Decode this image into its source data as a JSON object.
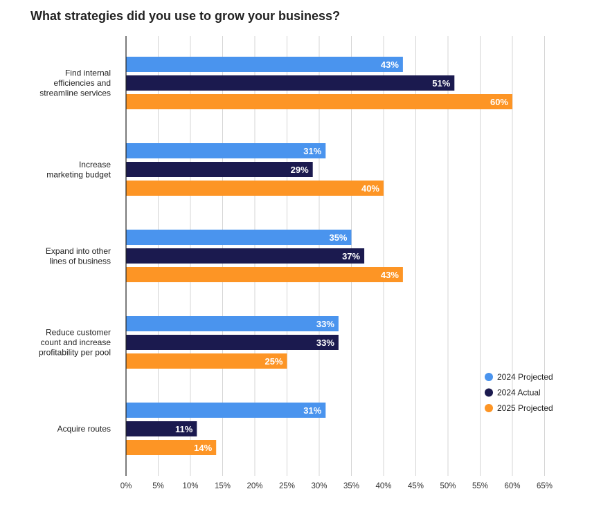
{
  "chart_data": {
    "type": "bar",
    "orientation": "horizontal",
    "title": "What strategies did you use to grow your business?",
    "categories": [
      [
        "Find internal",
        "efficiencies and",
        "streamline services"
      ],
      [
        "Increase",
        "marketing budget"
      ],
      [
        "Expand into other",
        "lines of business"
      ],
      [
        "Reduce customer",
        "count and increase",
        "profitability per pool"
      ],
      [
        "Acquire routes"
      ]
    ],
    "series": [
      {
        "name": "2024 Projected",
        "color": "#4a94ee",
        "values": [
          43,
          31,
          35,
          33,
          31
        ],
        "labels": [
          "43%",
          "31%",
          "35%",
          "33%",
          "31%"
        ]
      },
      {
        "name": "2024 Actual",
        "color": "#1b1a4f",
        "values": [
          51,
          29,
          37,
          33,
          11
        ],
        "labels": [
          "51%",
          "29%",
          "37%",
          "33%",
          "11%"
        ]
      },
      {
        "name": "2025 Projected",
        "color": "#fd9525",
        "values": [
          60,
          40,
          43,
          25,
          14
        ],
        "labels": [
          "60%",
          "40%",
          "43%",
          "25%",
          "14%"
        ]
      }
    ],
    "xlim": [
      0,
      65
    ],
    "xticks": [
      "0%",
      "5%",
      "10%",
      "15%",
      "20%",
      "25%",
      "30%",
      "35%",
      "40%",
      "45%",
      "50%",
      "55%",
      "60%",
      "65%"
    ],
    "grid": true,
    "legend_position": "bottom-right"
  }
}
